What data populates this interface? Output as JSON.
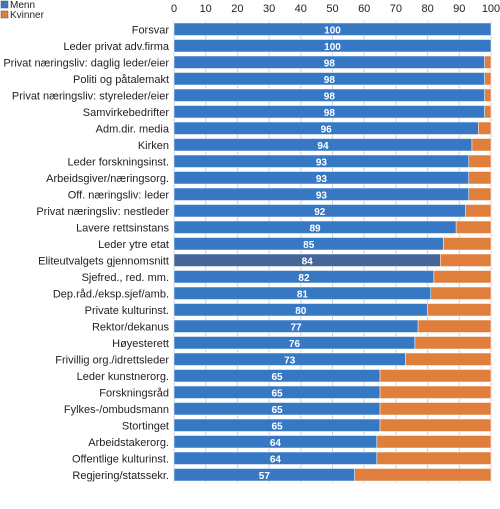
{
  "chart_data": {
    "type": "bar",
    "orientation": "horizontal",
    "stacked": true,
    "xlim": [
      0,
      100
    ],
    "xticks": [
      0,
      10,
      20,
      30,
      40,
      50,
      60,
      70,
      80,
      90,
      100
    ],
    "grid": true,
    "legend_position": "top-left",
    "series": [
      {
        "name": "Menn",
        "color": "#3778c4"
      },
      {
        "name": "Kvinner",
        "color": "#e07f3c"
      }
    ],
    "highlight_category": "Eliteutvalgets gjennomsnitt",
    "highlight_color": "#46669a",
    "categories": [
      "Forsvar",
      "Leder privat adv.firma",
      "Privat næringsliv: daglig leder/eier",
      "Politi og påtalemakt",
      "Privat næringsliv: styreleder/eier",
      "Samvirkebedrifter",
      "Adm.dir. media",
      "Kirken",
      "Leder forskningsinst.",
      "Arbeidsgiver/næringsorg.",
      "Off. næringsliv: leder",
      "Privat næringsliv: nestleder",
      "Lavere rettsinstans",
      "Leder ytre etat",
      "Eliteutvalgets gjennomsnitt",
      "Sjefred., red. mm.",
      "Dep.råd./eksp.sjef/amb.",
      "Private kulturinst.",
      "Rektor/dekanus",
      "Høyesterett",
      "Frivillig org./idrettsleder",
      "Leder kunstnerorg.",
      "Forskningsråd",
      "Fylkes-/ombudsmann",
      "Stortinget",
      "Arbeidstakerorg.",
      "Offentlige kulturinst.",
      "Regjering/statssekr."
    ],
    "values": [
      100,
      100,
      98,
      98,
      98,
      98,
      96,
      94,
      93,
      93,
      93,
      92,
      89,
      85,
      84,
      82,
      81,
      80,
      77,
      76,
      73,
      65,
      65,
      65,
      65,
      64,
      64,
      57
    ]
  }
}
